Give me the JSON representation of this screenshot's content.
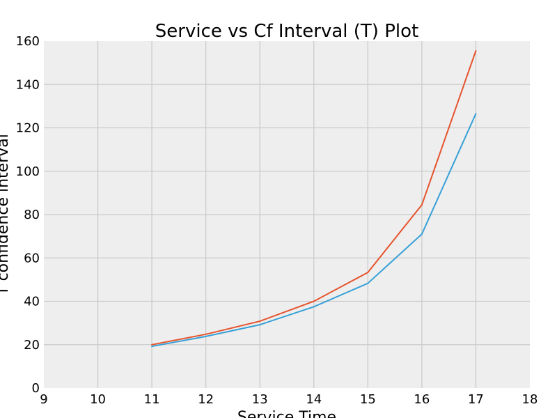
{
  "chart_data": {
    "type": "line",
    "title": "Service vs Cf Interval (T) Plot",
    "xlabel": "Service Time",
    "ylabel": "T confidence interval",
    "xlim": [
      9,
      18
    ],
    "ylim": [
      0,
      160
    ],
    "xticks": [
      9,
      10,
      11,
      12,
      13,
      14,
      15,
      16,
      17,
      18
    ],
    "yticks": [
      0,
      20,
      40,
      60,
      80,
      100,
      120,
      140,
      160
    ],
    "grid": true,
    "plot_background": "#eeeeee",
    "x": [
      11,
      12,
      13,
      14,
      15,
      16,
      17
    ],
    "series": [
      {
        "color": "#e5532d",
        "values": [
          20.0,
          24.8,
          30.8,
          40.0,
          53.3,
          84.5,
          155.5
        ]
      },
      {
        "color": "#36a0d6",
        "values": [
          19.2,
          23.8,
          29.2,
          37.5,
          48.3,
          71.0,
          126.5
        ]
      }
    ]
  }
}
